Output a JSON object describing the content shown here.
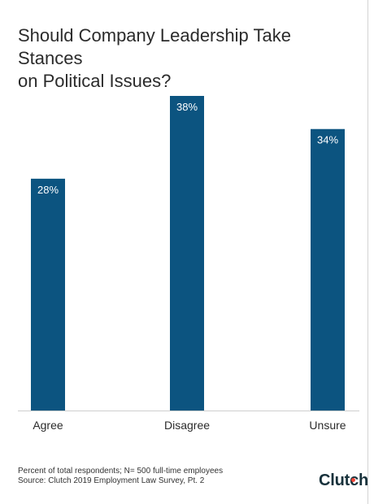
{
  "title_lines": [
    "Should Company Leadership Take Stances",
    "on Political Issues?"
  ],
  "footnote": {
    "line1": "Percent of total respondents; N= 500 full-time employees",
    "line2": "Source: Clutch 2019 Employment Law Survey, Pt. 2"
  },
  "brand": {
    "name": "Clutch"
  },
  "colors": {
    "bar": "#0c5480",
    "bar_label": "#ffffff",
    "axis": "#cfcfcf",
    "text": "#2b2b2b",
    "brand_dot": "#ef4335"
  },
  "chart_data": {
    "type": "bar",
    "title": "Should Company Leadership Take Stances on Political Issues?",
    "categories": [
      "Agree",
      "Disagree",
      "Unsure"
    ],
    "values": [
      28,
      38,
      34
    ],
    "data_labels": [
      "28%",
      "38%",
      "34%"
    ],
    "unit": "%",
    "xlabel": "",
    "ylabel": "",
    "ylim": [
      0,
      38
    ],
    "grid": false,
    "legend": "none"
  }
}
